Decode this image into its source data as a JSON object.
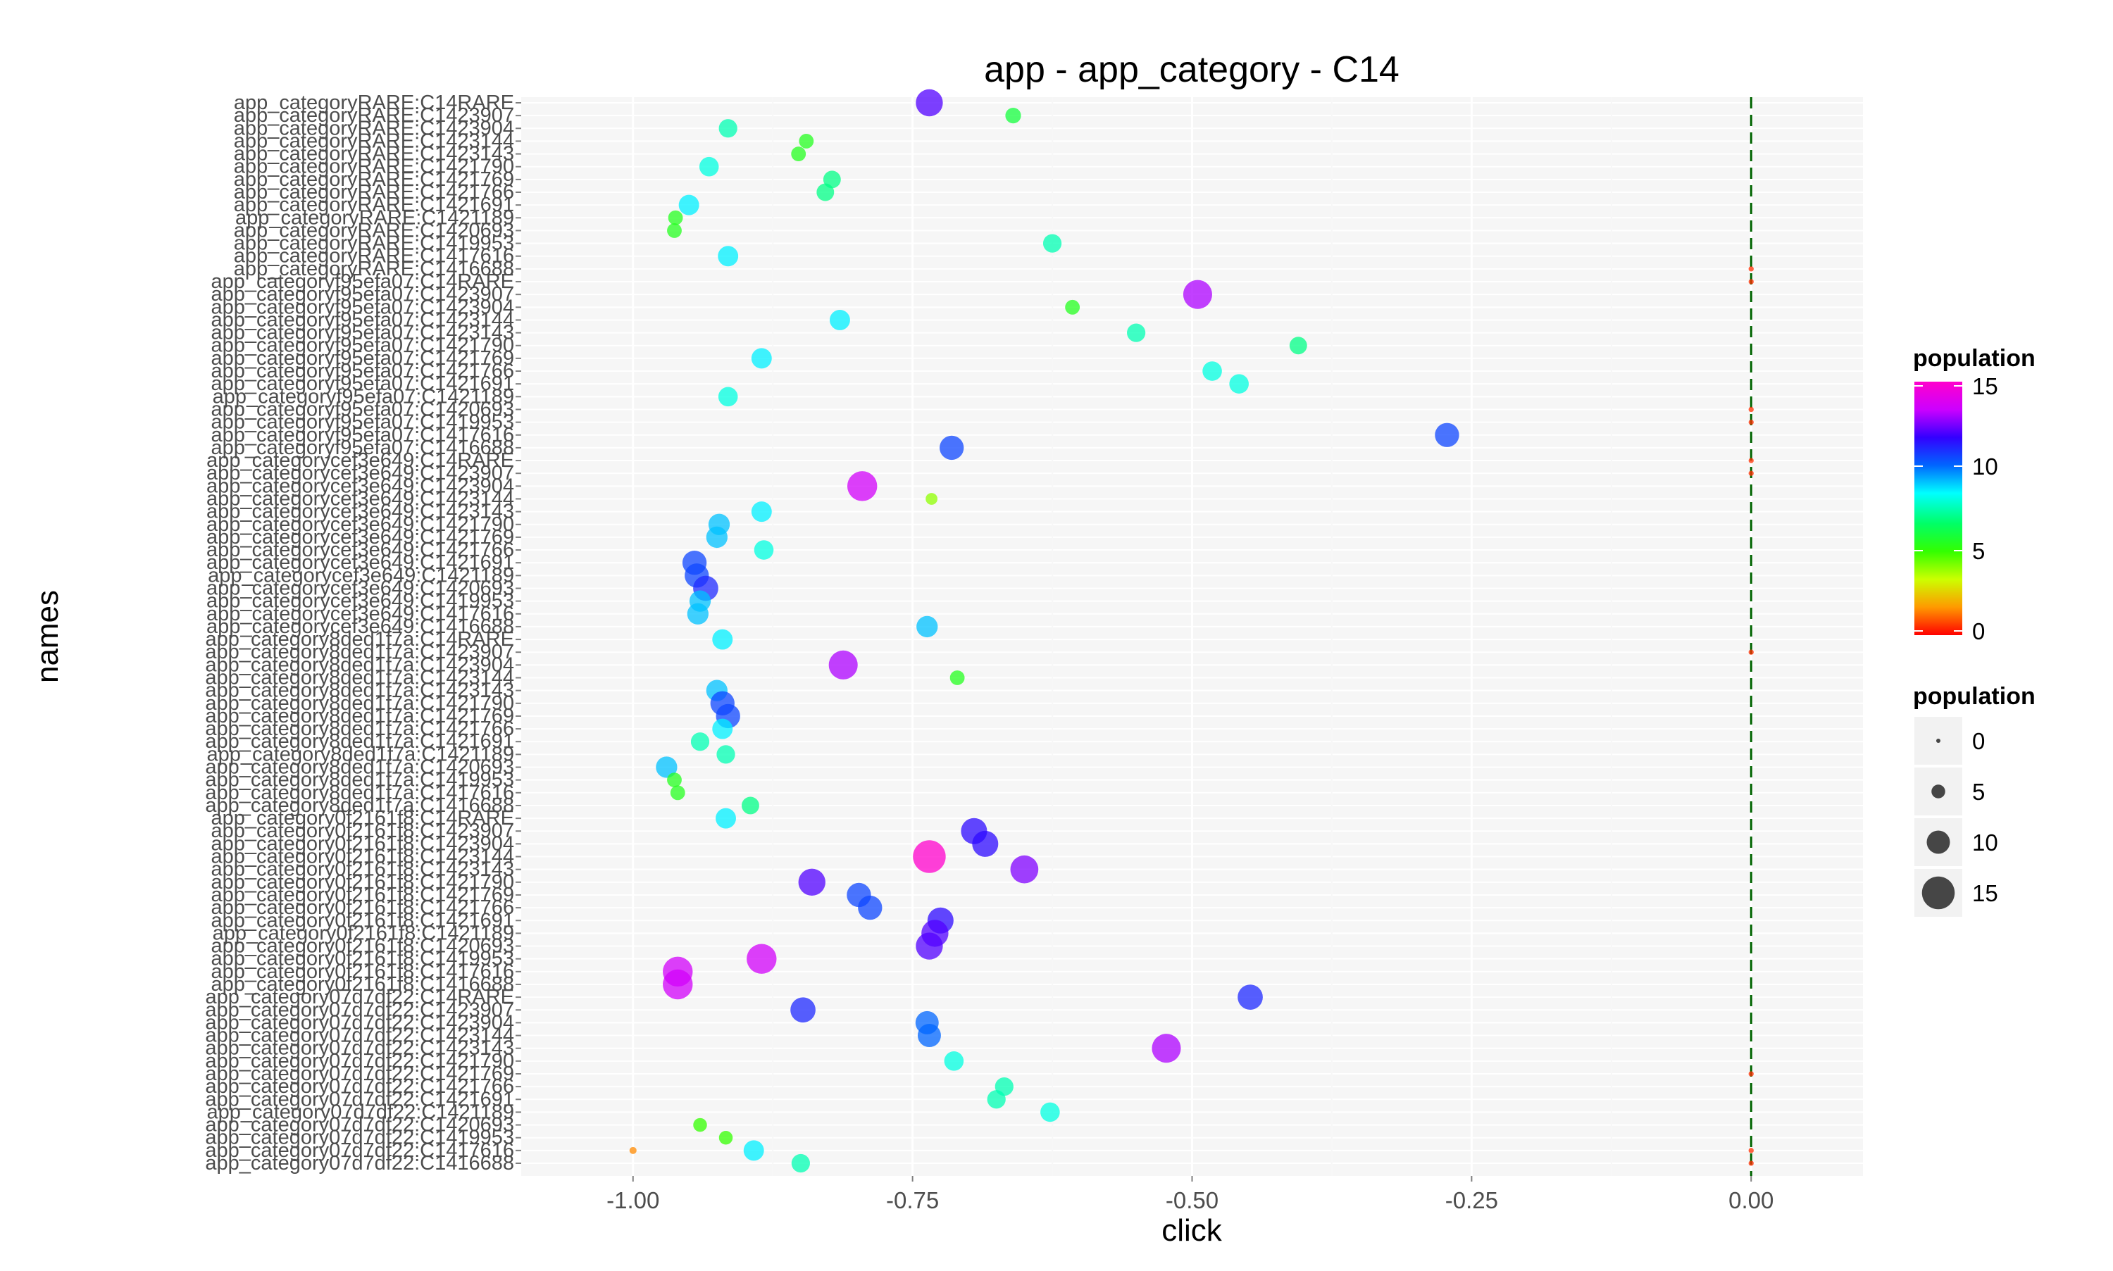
{
  "chart_data": {
    "type": "scatter",
    "title": "app - app_category - C14",
    "xlabel": "click",
    "ylabel": "names",
    "xlim": [
      -1.1,
      0.1
    ],
    "xticks": [
      -1.0,
      -0.75,
      -0.5,
      -0.25,
      0.0
    ],
    "xtick_labels": [
      "-1.00",
      "-0.75",
      "-0.50",
      "-0.25",
      "0.00"
    ],
    "grid": true,
    "reference_line": {
      "x": 0.0,
      "style": "dashed",
      "color": "#006400"
    },
    "color_scale": {
      "name": "population",
      "min": 0,
      "max": 15,
      "breaks": [
        0,
        5,
        10,
        15
      ],
      "palette": [
        "#ff0000",
        "#ff9900",
        "#ccff00",
        "#33ff00",
        "#00ff66",
        "#00ffff",
        "#0066ff",
        "#3300ff",
        "#cc00ff",
        "#ff00cc"
      ]
    },
    "size_scale": {
      "name": "population",
      "breaks": [
        0,
        5,
        10,
        15
      ]
    },
    "legend_position": "right",
    "categories": [
      "app_categoryRARE:C14RARE",
      "app_categoryRARE:C1423907",
      "app_categoryRARE:C1423904",
      "app_categoryRARE:C1423144",
      "app_categoryRARE:C1423143",
      "app_categoryRARE:C1421790",
      "app_categoryRARE:C1421769",
      "app_categoryRARE:C1421766",
      "app_categoryRARE:C1421691",
      "app_categoryRARE:C1421189",
      "app_categoryRARE:C1420693",
      "app_categoryRARE:C1419953",
      "app_categoryRARE:C1417616",
      "app_categoryRARE:C1416688",
      "app_categoryf95efa07:C14RARE",
      "app_categoryf95efa07:C1423907",
      "app_categoryf95efa07:C1423904",
      "app_categoryf95efa07:C1423144",
      "app_categoryf95efa07:C1423143",
      "app_categoryf95efa07:C1421790",
      "app_categoryf95efa07:C1421769",
      "app_categoryf95efa07:C1421766",
      "app_categoryf95efa07:C1421691",
      "app_categoryf95efa07:C1421189",
      "app_categoryf95efa07:C1420693",
      "app_categoryf95efa07:C1419953",
      "app_categoryf95efa07:C1417616",
      "app_categoryf95efa07:C1416688",
      "app_categorycef3e649:C14RARE",
      "app_categorycef3e649:C1423907",
      "app_categorycef3e649:C1423904",
      "app_categorycef3e649:C1423144",
      "app_categorycef3e649:C1423143",
      "app_categorycef3e649:C1421790",
      "app_categorycef3e649:C1421769",
      "app_categorycef3e649:C1421766",
      "app_categorycef3e649:C1421691",
      "app_categorycef3e649:C1421189",
      "app_categorycef3e649:C1420693",
      "app_categorycef3e649:C1419953",
      "app_categorycef3e649:C1417616",
      "app_categorycef3e649:C1416688",
      "app_category8ded1f7a:C14RARE",
      "app_category8ded1f7a:C1423907",
      "app_category8ded1f7a:C1423904",
      "app_category8ded1f7a:C1423144",
      "app_category8ded1f7a:C1423143",
      "app_category8ded1f7a:C1421790",
      "app_category8ded1f7a:C1421769",
      "app_category8ded1f7a:C1421766",
      "app_category8ded1f7a:C1421691",
      "app_category8ded1f7a:C1421189",
      "app_category8ded1f7a:C1420693",
      "app_category8ded1f7a:C1419953",
      "app_category8ded1f7a:C1417616",
      "app_category8ded1f7a:C1416688",
      "app_category0f2161f8:C14RARE",
      "app_category0f2161f8:C1423907",
      "app_category0f2161f8:C1423904",
      "app_category0f2161f8:C1423144",
      "app_category0f2161f8:C1423143",
      "app_category0f2161f8:C1421790",
      "app_category0f2161f8:C1421769",
      "app_category0f2161f8:C1421766",
      "app_category0f2161f8:C1421691",
      "app_category0f2161f8:C1421189",
      "app_category0f2161f8:C1420693",
      "app_category0f2161f8:C1419953",
      "app_category0f2161f8:C1417616",
      "app_category0f2161f8:C1416688",
      "app_category07d7df22:C14RARE",
      "app_category07d7df22:C1423907",
      "app_category07d7df22:C1423904",
      "app_category07d7df22:C1423144",
      "app_category07d7df22:C1423143",
      "app_category07d7df22:C1421790",
      "app_category07d7df22:C1421769",
      "app_category07d7df22:C1421766",
      "app_category07d7df22:C1421691",
      "app_category07d7df22:C1421189",
      "app_category07d7df22:C1420693",
      "app_category07d7df22:C1419953",
      "app_category07d7df22:C1417616",
      "app_category07d7df22:C1416688"
    ],
    "points": [
      {
        "name": "app_categoryRARE:C14RARE",
        "click": -0.735,
        "population": 12.0
      },
      {
        "name": "app_categoryRARE:C1423907",
        "click": -0.66,
        "population": 6.0
      },
      {
        "name": "app_categoryRARE:C1423904",
        "click": -0.915,
        "population": 7.5
      },
      {
        "name": "app_categoryRARE:C1423144",
        "click": -0.845,
        "population": 5.5
      },
      {
        "name": "app_categoryRARE:C1423143",
        "click": -0.852,
        "population": 5.5
      },
      {
        "name": "app_categoryRARE:C1421790",
        "click": -0.932,
        "population": 8.0
      },
      {
        "name": "app_categoryRARE:C1421769",
        "click": -0.822,
        "population": 7.0
      },
      {
        "name": "app_categoryRARE:C1421766",
        "click": -0.828,
        "population": 7.0
      },
      {
        "name": "app_categoryRARE:C1421691",
        "click": -0.95,
        "population": 8.5
      },
      {
        "name": "app_categoryRARE:C1421189",
        "click": -0.962,
        "population": 5.5
      },
      {
        "name": "app_categoryRARE:C1420693",
        "click": -0.963,
        "population": 5.5
      },
      {
        "name": "app_categoryRARE:C1419953",
        "click": -0.625,
        "population": 7.5
      },
      {
        "name": "app_categoryRARE:C1417616",
        "click": -0.915,
        "population": 8.5
      },
      {
        "name": "app_categoryRARE:C1416688",
        "click": 0.0,
        "population": 0.5
      },
      {
        "name": "app_categoryf95efa07:C14RARE",
        "click": 0.0,
        "population": 0.5
      },
      {
        "name": "app_categoryf95efa07:C1423907",
        "click": -0.495,
        "population": 13.0
      },
      {
        "name": "app_categoryf95efa07:C1423904",
        "click": -0.607,
        "population": 5.5
      },
      {
        "name": "app_categoryf95efa07:C1423144",
        "click": -0.815,
        "population": 8.5
      },
      {
        "name": "app_categoryf95efa07:C1423143",
        "click": -0.55,
        "population": 7.5
      },
      {
        "name": "app_categoryf95efa07:C1421790",
        "click": -0.405,
        "population": 7.0
      },
      {
        "name": "app_categoryf95efa07:C1421769",
        "click": -0.885,
        "population": 8.5
      },
      {
        "name": "app_categoryf95efa07:C1421766",
        "click": -0.482,
        "population": 8.0
      },
      {
        "name": "app_categoryf95efa07:C1421691",
        "click": -0.458,
        "population": 8.0
      },
      {
        "name": "app_categoryf95efa07:C1421189",
        "click": -0.915,
        "population": 8.0
      },
      {
        "name": "app_categoryf95efa07:C1420693",
        "click": 0.0,
        "population": 0.5
      },
      {
        "name": "app_categoryf95efa07:C1419953",
        "click": 0.0,
        "population": 0.5
      },
      {
        "name": "app_categoryf95efa07:C1417616",
        "click": -0.272,
        "population": 10.5
      },
      {
        "name": "app_categoryf95efa07:C1416688",
        "click": -0.715,
        "population": 10.5
      },
      {
        "name": "app_categorycef3e649:C14RARE",
        "click": 0.0,
        "population": 0.5
      },
      {
        "name": "app_categorycef3e649:C1423907",
        "click": 0.0,
        "population": 0.5
      },
      {
        "name": "app_categorycef3e649:C1423904",
        "click": -0.795,
        "population": 13.5
      },
      {
        "name": "app_categorycef3e649:C1423144",
        "click": -0.733,
        "population": 4.0
      },
      {
        "name": "app_categorycef3e649:C1423143",
        "click": -0.885,
        "population": 8.5
      },
      {
        "name": "app_categorycef3e649:C1421790",
        "click": -0.923,
        "population": 9.0
      },
      {
        "name": "app_categorycef3e649:C1421769",
        "click": -0.925,
        "population": 9.0
      },
      {
        "name": "app_categorycef3e649:C1421766",
        "click": -0.883,
        "population": 8.0
      },
      {
        "name": "app_categorycef3e649:C1421691",
        "click": -0.945,
        "population": 10.5
      },
      {
        "name": "app_categorycef3e649:C1421189",
        "click": -0.943,
        "population": 10.5
      },
      {
        "name": "app_categorycef3e649:C1420693",
        "click": -0.935,
        "population": 11.0
      },
      {
        "name": "app_categorycef3e649:C1419953",
        "click": -0.94,
        "population": 9.0
      },
      {
        "name": "app_categorycef3e649:C1417616",
        "click": -0.942,
        "population": 9.0
      },
      {
        "name": "app_categorycef3e649:C1416688",
        "click": -0.737,
        "population": 9.0
      },
      {
        "name": "app_category8ded1f7a:C14RARE",
        "click": -0.92,
        "population": 8.5
      },
      {
        "name": "app_category8ded1f7a:C1423907",
        "click": 0.0,
        "population": 0.5
      },
      {
        "name": "app_category8ded1f7a:C1423904",
        "click": -0.812,
        "population": 13.0
      },
      {
        "name": "app_category8ded1f7a:C1423144",
        "click": -0.71,
        "population": 5.5
      },
      {
        "name": "app_category8ded1f7a:C1423143",
        "click": -0.925,
        "population": 9.0
      },
      {
        "name": "app_category8ded1f7a:C1421790",
        "click": -0.92,
        "population": 10.5
      },
      {
        "name": "app_category8ded1f7a:C1421769",
        "click": -0.915,
        "population": 10.5
      },
      {
        "name": "app_category8ded1f7a:C1421766",
        "click": -0.92,
        "population": 8.5
      },
      {
        "name": "app_category8ded1f7a:C1421691",
        "click": -0.94,
        "population": 7.5
      },
      {
        "name": "app_category8ded1f7a:C1421189",
        "click": -0.917,
        "population": 7.5
      },
      {
        "name": "app_category8ded1f7a:C1420693",
        "click": -0.97,
        "population": 9.0
      },
      {
        "name": "app_category8ded1f7a:C1419953",
        "click": -0.963,
        "population": 5.5
      },
      {
        "name": "app_category8ded1f7a:C1417616",
        "click": -0.96,
        "population": 5.5
      },
      {
        "name": "app_category8ded1f7a:C1416688",
        "click": -0.895,
        "population": 7.0
      },
      {
        "name": "app_category0f2161f8:C14RARE",
        "click": -0.917,
        "population": 8.5
      },
      {
        "name": "app_category0f2161f8:C1423907",
        "click": -0.695,
        "population": 11.5
      },
      {
        "name": "app_category0f2161f8:C1423904",
        "click": -0.685,
        "population": 11.5
      },
      {
        "name": "app_category0f2161f8:C1423144",
        "click": -0.735,
        "population": 15.0
      },
      {
        "name": "app_category0f2161f8:C1423143",
        "click": -0.65,
        "population": 12.5
      },
      {
        "name": "app_category0f2161f8:C1421790",
        "click": -0.84,
        "population": 12.0
      },
      {
        "name": "app_category0f2161f8:C1421769",
        "click": -0.798,
        "population": 10.5
      },
      {
        "name": "app_category0f2161f8:C1421766",
        "click": -0.788,
        "population": 10.5
      },
      {
        "name": "app_category0f2161f8:C1421691",
        "click": -0.725,
        "population": 11.5
      },
      {
        "name": "app_category0f2161f8:C1421189",
        "click": -0.73,
        "population": 12.0
      },
      {
        "name": "app_category0f2161f8:C1420693",
        "click": -0.735,
        "population": 12.0
      },
      {
        "name": "app_category0f2161f8:C1419953",
        "click": -0.885,
        "population": 13.5
      },
      {
        "name": "app_category0f2161f8:C1417616",
        "click": -0.96,
        "population": 13.5
      },
      {
        "name": "app_category0f2161f8:C1416688",
        "click": -0.96,
        "population": 13.5
      },
      {
        "name": "app_category07d7df22:C14RARE",
        "click": -0.448,
        "population": 11.0
      },
      {
        "name": "app_category07d7df22:C1423907",
        "click": -0.848,
        "population": 11.0
      },
      {
        "name": "app_category07d7df22:C1423904",
        "click": -0.737,
        "population": 10.0
      },
      {
        "name": "app_category07d7df22:C1423144",
        "click": -0.735,
        "population": 10.0
      },
      {
        "name": "app_category07d7df22:C1423143",
        "click": -0.523,
        "population": 13.0
      },
      {
        "name": "app_category07d7df22:C1421790",
        "click": -0.713,
        "population": 8.0
      },
      {
        "name": "app_category07d7df22:C1421769",
        "click": 0.0,
        "population": 0.5
      },
      {
        "name": "app_category07d7df22:C1421766",
        "click": -0.668,
        "population": 7.5
      },
      {
        "name": "app_category07d7df22:C1421691",
        "click": -0.675,
        "population": 7.5
      },
      {
        "name": "app_category07d7df22:C1421189",
        "click": -0.627,
        "population": 8.0
      },
      {
        "name": "app_category07d7df22:C1420693",
        "click": -0.94,
        "population": 5.0
      },
      {
        "name": "app_category07d7df22:C1419953",
        "click": -0.917,
        "population": 5.0
      },
      {
        "name": "app_category07d7df22:C1417616",
        "click": -0.892,
        "population": 8.5
      },
      {
        "name": "app_category07d7df22:C1416688",
        "click": 0.0,
        "population": 0.5
      }
    ],
    "extra_points": [
      {
        "name": "app_category07d7df22:C1417616",
        "click": -1.0,
        "population": 1.5
      },
      {
        "name": "app_category07d7df22:C1417616",
        "click": 0.0,
        "population": 0.5
      },
      {
        "name": "app_category07d7df22:C1416688",
        "click": -0.85,
        "population": 7.5
      }
    ]
  }
}
